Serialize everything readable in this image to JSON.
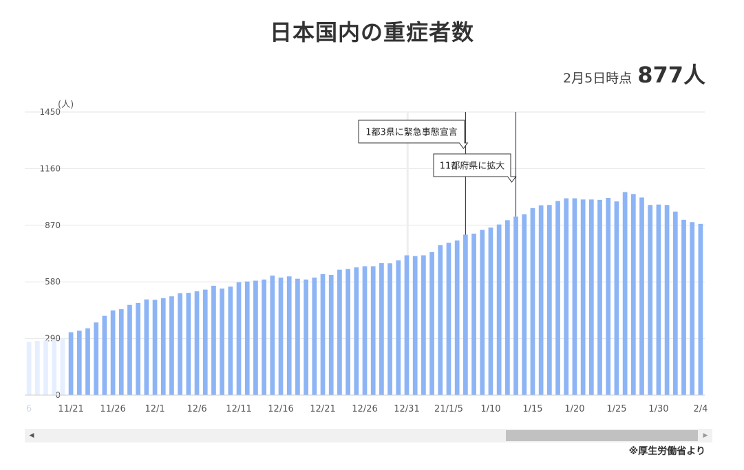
{
  "title": "日本国内の重症者数",
  "as_of": {
    "date_text": "2月5日時点",
    "value_text": "877人"
  },
  "source": "※厚生労働省より",
  "chart_data": {
    "type": "bar",
    "ylabel": "(人)",
    "ylim": [
      0,
      1450
    ],
    "yticks": [
      0,
      290,
      580,
      870,
      1160,
      1450
    ],
    "grid": true,
    "bar_color": "#8db4f5",
    "faded_bar_color": "#e6efff",
    "x_tick_labels": [
      "6",
      "11/21",
      "11/26",
      "12/1",
      "12/6",
      "12/11",
      "12/16",
      "12/21",
      "12/26",
      "12/31",
      "21/1/5",
      "1/10",
      "1/15",
      "1/20",
      "1/25",
      "1/30",
      "2/4"
    ],
    "faded_values": [
      272,
      278,
      280,
      285,
      290
    ],
    "values": [
      322,
      330,
      342,
      372,
      406,
      434,
      440,
      462,
      472,
      490,
      488,
      496,
      506,
      522,
      524,
      532,
      540,
      560,
      546,
      556,
      578,
      582,
      586,
      592,
      612,
      602,
      608,
      596,
      592,
      602,
      620,
      616,
      642,
      646,
      654,
      660,
      660,
      676,
      675,
      690,
      716,
      712,
      716,
      732,
      768,
      780,
      792,
      822,
      827,
      846,
      858,
      874,
      896,
      914,
      926,
      958,
      972,
      974,
      994,
      1008,
      1008,
      1002,
      1002,
      1000,
      1010,
      992,
      1040,
      1030,
      1012,
      974,
      976,
      974,
      940,
      898,
      886,
      877
    ],
    "annotations": [
      {
        "label": "1都3県に緊急事態宣言",
        "date": "1/7"
      },
      {
        "label": "11都府県に拡大",
        "date": "1/13"
      }
    ]
  }
}
